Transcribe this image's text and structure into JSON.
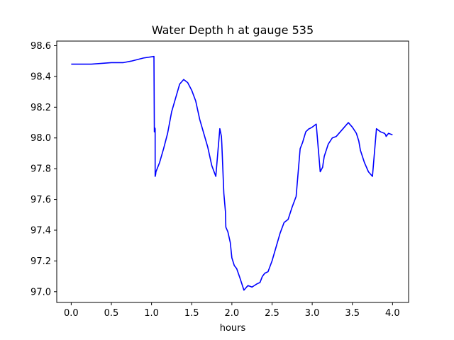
{
  "chart_data": {
    "type": "line",
    "title": "Water Depth h at gauge 535",
    "xlabel": "hours",
    "ylabel": "",
    "xlim": [
      -0.18,
      4.2
    ],
    "ylim": [
      96.93,
      98.63
    ],
    "grid": false,
    "x_ticks": [
      0.0,
      0.5,
      1.0,
      1.5,
      2.0,
      2.5,
      3.0,
      3.5,
      4.0
    ],
    "x_tick_labels": [
      "0.0",
      "0.5",
      "1.0",
      "1.5",
      "2.0",
      "2.5",
      "3.0",
      "3.5",
      "4.0"
    ],
    "y_ticks": [
      97.0,
      97.2,
      97.4,
      97.6,
      97.8,
      98.0,
      98.2,
      98.4,
      98.6
    ],
    "y_tick_labels": [
      "97.0",
      "97.2",
      "97.4",
      "97.6",
      "97.8",
      "98.0",
      "98.2",
      "98.4",
      "98.6"
    ],
    "series": [
      {
        "color": "#0000ff",
        "x": [
          0.0,
          0.25,
          0.5,
          0.65,
          0.75,
          0.9,
          1.03,
          1.035,
          1.035,
          1.045,
          1.045,
          1.05,
          1.055,
          1.07,
          1.1,
          1.15,
          1.2,
          1.25,
          1.3,
          1.35,
          1.4,
          1.45,
          1.5,
          1.55,
          1.6,
          1.65,
          1.7,
          1.75,
          1.8,
          1.85,
          1.87,
          1.875,
          1.9,
          1.92,
          1.925,
          1.95,
          1.98,
          2.0,
          2.03,
          2.06,
          2.1,
          2.15,
          2.2,
          2.25,
          2.28,
          2.31,
          2.35,
          2.38,
          2.41,
          2.45,
          2.5,
          2.55,
          2.6,
          2.65,
          2.7,
          2.75,
          2.8,
          2.85,
          2.88,
          2.92,
          2.96,
          2.965,
          3.0,
          3.05,
          3.1,
          3.13,
          3.135,
          3.15,
          3.2,
          3.25,
          3.3,
          3.35,
          3.4,
          3.45,
          3.5,
          3.55,
          3.58,
          3.6,
          3.65,
          3.7,
          3.75,
          3.8,
          3.85,
          3.9,
          3.915,
          3.92,
          3.95,
          4.0
        ],
        "y": [
          98.48,
          98.48,
          98.49,
          98.49,
          98.5,
          98.52,
          98.53,
          98.04,
          98.07,
          98.06,
          97.75,
          97.76,
          97.78,
          97.8,
          97.84,
          97.93,
          98.03,
          98.17,
          98.26,
          98.35,
          98.38,
          98.36,
          98.31,
          98.24,
          98.12,
          98.03,
          97.94,
          97.82,
          97.75,
          98.06,
          98.01,
          97.96,
          97.64,
          97.52,
          97.42,
          97.39,
          97.32,
          97.22,
          97.17,
          97.15,
          97.09,
          97.01,
          97.04,
          97.03,
          97.04,
          97.05,
          97.06,
          97.1,
          97.12,
          97.13,
          97.2,
          97.29,
          97.38,
          97.45,
          97.47,
          97.55,
          97.62,
          97.93,
          97.97,
          98.04,
          98.06,
          98.06,
          98.07,
          98.09,
          97.78,
          97.81,
          97.83,
          97.88,
          97.96,
          98.0,
          98.01,
          98.04,
          98.07,
          98.1,
          98.07,
          98.03,
          97.98,
          97.92,
          97.84,
          97.78,
          97.75,
          98.06,
          98.04,
          98.03,
          98.02,
          98.01,
          98.03,
          98.02
        ]
      }
    ]
  }
}
